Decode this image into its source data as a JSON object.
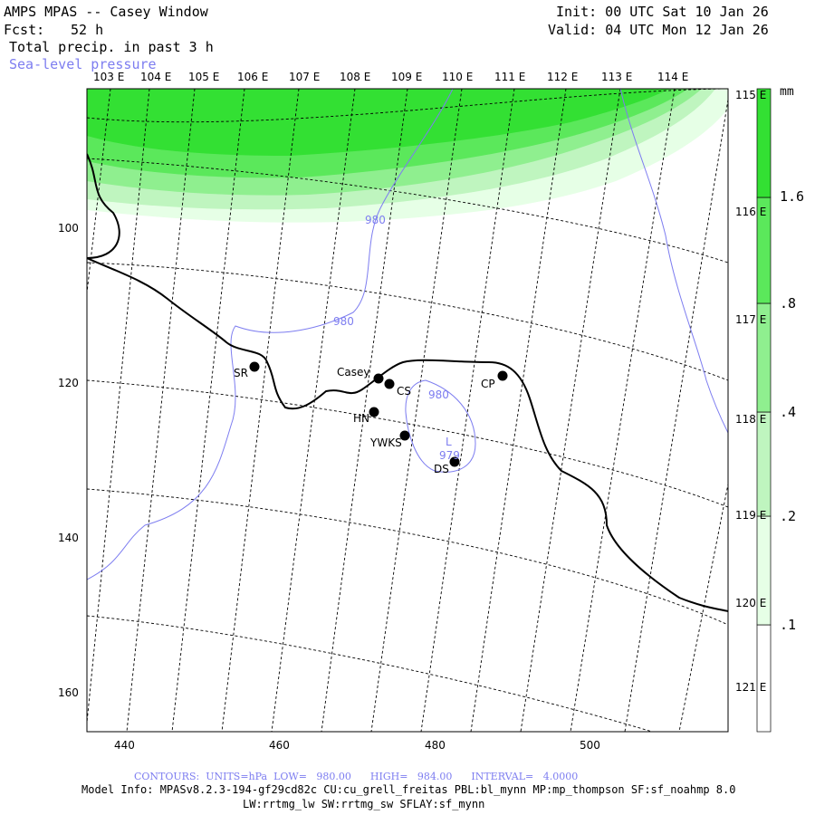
{
  "header": {
    "title": "AMPS MPAS -- Casey Window",
    "forecast_label": "Fcst:",
    "forecast_value": "52 h",
    "field": "Total precip. in past 3 h",
    "overlay": "Sea-level pressure",
    "init": "Init: 00 UTC Sat 10 Jan 26",
    "valid": "Valid: 04 UTC Mon 12 Jan 26"
  },
  "axes": {
    "top_lon": [
      "103 E",
      "104 E",
      "105 E",
      "106 E",
      "107 E",
      "108 E",
      "109 E",
      "110 E",
      "111 E",
      "112 E",
      "113 E",
      "114 E"
    ],
    "right_lon": [
      "115 E",
      "116 E",
      "117 E",
      "118 E",
      "119 E",
      "120 E",
      "121 E"
    ],
    "left_y": [
      "100",
      "120",
      "140",
      "160"
    ],
    "bottom_x": [
      "440",
      "460",
      "480",
      "500"
    ]
  },
  "colorbar": {
    "unit": "mm",
    "labels": [
      "1.6",
      ".8",
      ".4",
      ".2",
      ".1"
    ],
    "colors": [
      "#ffffff",
      "#e6ffe6",
      "#bff5bf",
      "#8fef8f",
      "#5be85b",
      "#33e033"
    ]
  },
  "stations": [
    {
      "name": "SR"
    },
    {
      "name": "Casey"
    },
    {
      "name": "CS"
    },
    {
      "name": "HN"
    },
    {
      "name": "YWKS"
    },
    {
      "name": "CP"
    },
    {
      "name": "DS"
    }
  ],
  "contours": {
    "labels": [
      "980",
      "980",
      "980",
      "979"
    ],
    "low_marker": "L"
  },
  "footer": {
    "contours_line": "CONTOURS:  UNITS=hPa  LOW=   980.00      HIGH=   984.00      INTERVAL=   4.0000",
    "model_line1": "Model Info: MPASv8.2.3-194-gf29cd82c CU:cu_grell_freitas PBL:bl_mynn MP:mp_thompson SF:sf_noahmp 8.0",
    "model_line2": "LW:rrtmg_lw SW:rrtmg_sw SFLAY:sf_mynn"
  }
}
